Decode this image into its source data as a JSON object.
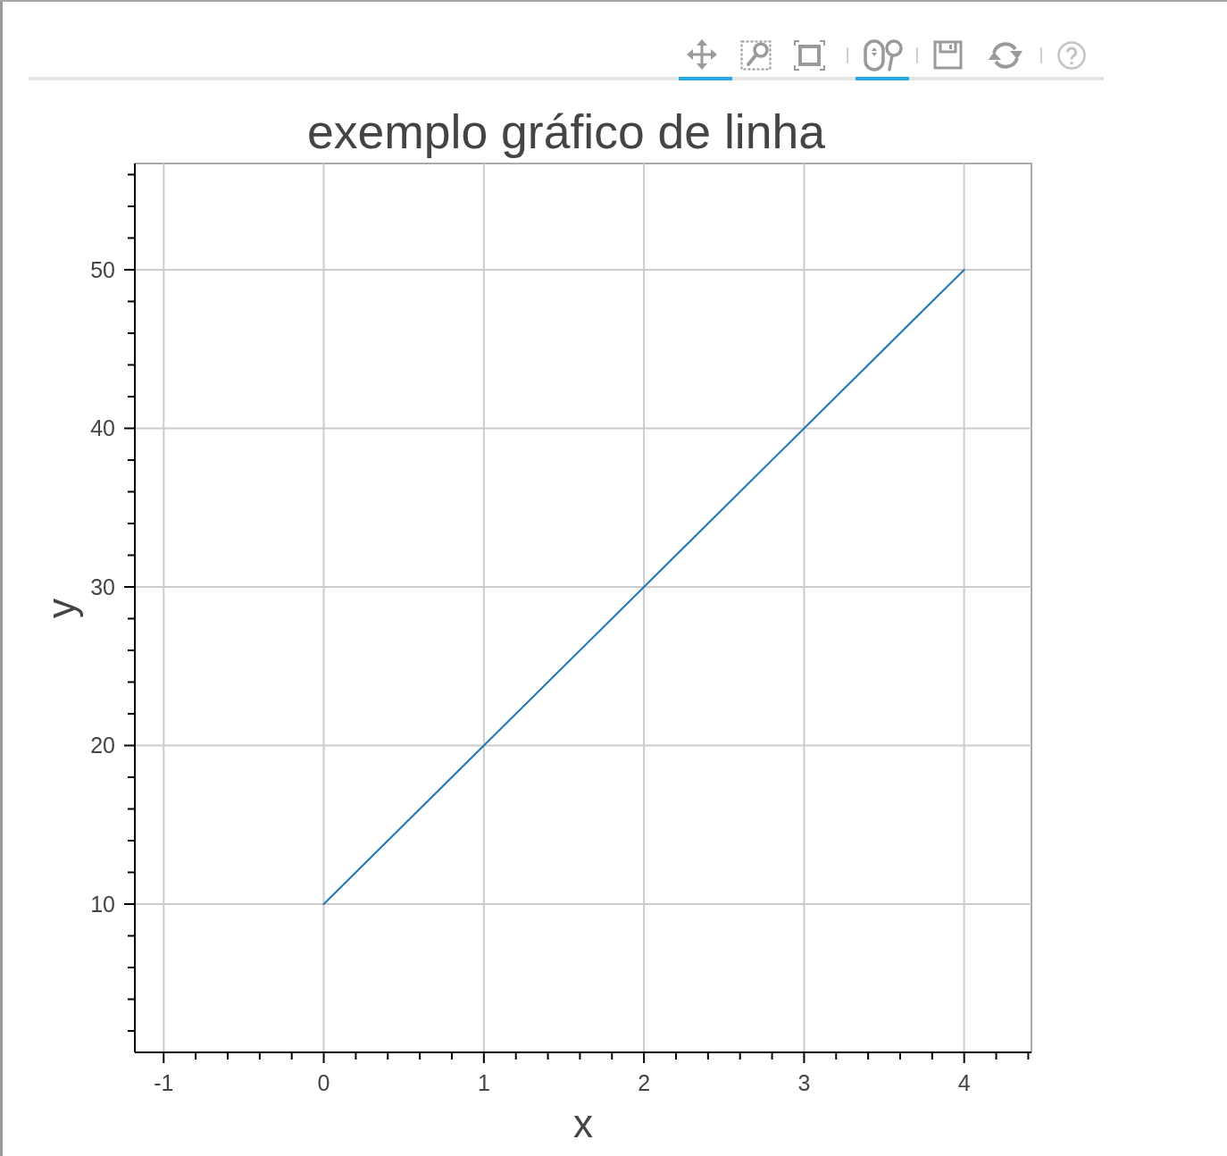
{
  "chart_data": {
    "type": "line",
    "title": "exemplo gráfico de linha",
    "xlabel": "x",
    "ylabel": "y",
    "x": [
      0,
      1,
      2,
      3,
      4
    ],
    "series": [
      {
        "color": "#1f77b4",
        "values": [
          10,
          20,
          30,
          40,
          50
        ]
      }
    ],
    "xlim": [
      -1.18,
      4.42
    ],
    "ylim": [
      0.65,
      56.7
    ],
    "xticks": [
      -1,
      {
        "value": -0.8,
        "label": null
      },
      {
        "value": -0.6,
        "label": null
      },
      {
        "value": -0.4,
        "label": null
      },
      {
        "value": -0.2,
        "label": null
      },
      0,
      {
        "value": 0.2,
        "label": null
      },
      {
        "value": 0.4,
        "label": null
      },
      {
        "value": 0.6,
        "label": null
      },
      {
        "value": 0.8,
        "label": null
      },
      1,
      {
        "value": 1.2,
        "label": null
      },
      {
        "value": 1.4,
        "label": null
      },
      {
        "value": 1.6,
        "label": null
      },
      {
        "value": 1.8,
        "label": null
      },
      2,
      {
        "value": 2.2,
        "label": null
      },
      {
        "value": 2.4,
        "label": null
      },
      {
        "value": 2.6,
        "label": null
      },
      {
        "value": 2.8,
        "label": null
      },
      3,
      {
        "value": 3.2,
        "label": null
      },
      {
        "value": 3.4,
        "label": null
      },
      {
        "value": 3.6,
        "label": null
      },
      {
        "value": 3.8,
        "label": null
      },
      4,
      {
        "value": 4.2,
        "label": null
      },
      {
        "value": 4.4,
        "label": null
      }
    ],
    "yticks": [
      {
        "value": 2,
        "label": null
      },
      {
        "value": 4,
        "label": null
      },
      {
        "value": 6,
        "label": null
      },
      {
        "value": 8,
        "label": null
      },
      10,
      {
        "value": 12,
        "label": null
      },
      {
        "value": 14,
        "label": null
      },
      {
        "value": 16,
        "label": null
      },
      {
        "value": 18,
        "label": null
      },
      20,
      {
        "value": 22,
        "label": null
      },
      {
        "value": 24,
        "label": null
      },
      {
        "value": 26,
        "label": null
      },
      {
        "value": 28,
        "label": null
      },
      30,
      {
        "value": 32,
        "label": null
      },
      {
        "value": 34,
        "label": null
      },
      {
        "value": 36,
        "label": null
      },
      {
        "value": 38,
        "label": null
      },
      40,
      {
        "value": 42,
        "label": null
      },
      {
        "value": 44,
        "label": null
      },
      {
        "value": 46,
        "label": null
      },
      {
        "value": 48,
        "label": null
      },
      50,
      {
        "value": 52,
        "label": null
      },
      {
        "value": 54,
        "label": null
      },
      {
        "value": 56,
        "label": null
      }
    ],
    "grid": true
  }
}
